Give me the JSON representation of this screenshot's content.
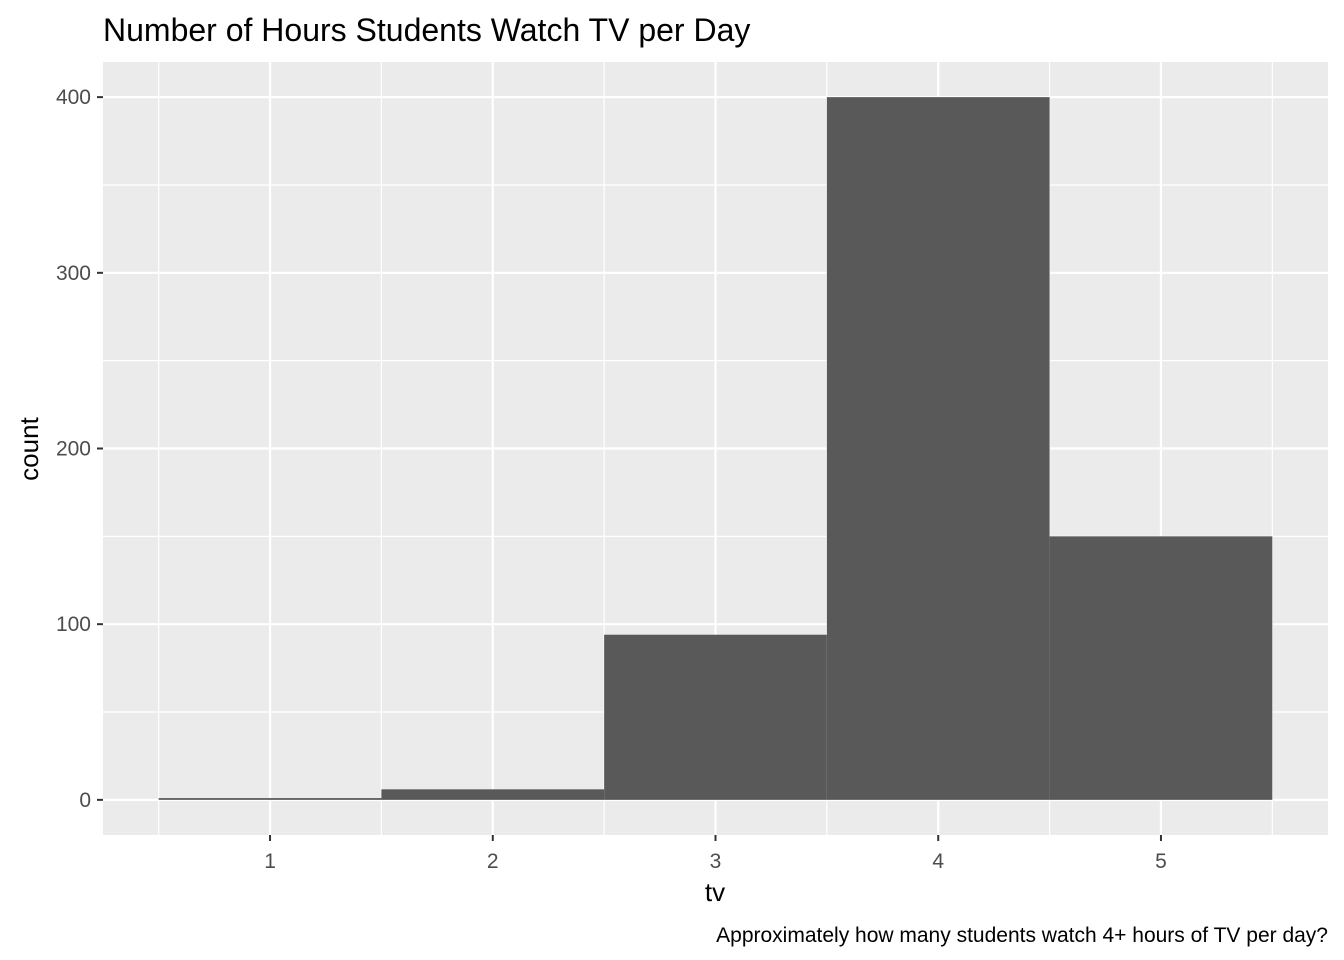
{
  "chart_data": {
    "type": "bar",
    "title": "Number of Hours Students Watch TV per Day",
    "xlabel": "tv",
    "ylabel": "count",
    "caption": "Approximately how many students watch 4+ hours of TV per day?",
    "categories": [
      "1",
      "2",
      "3",
      "4",
      "5"
    ],
    "x": [
      1,
      2,
      3,
      4,
      5
    ],
    "values": [
      1,
      6,
      94,
      400,
      150
    ],
    "xlim": [
      0.5,
      5.5
    ],
    "ylim": [
      0,
      400
    ],
    "xticks": [
      1,
      2,
      3,
      4,
      5
    ],
    "yticks": [
      0,
      100,
      200,
      300,
      400
    ],
    "grid": true,
    "legend": "none",
    "colors": {
      "panel": "#ebebeb",
      "grid": "#ffffff",
      "bar": "#595959",
      "tick_text": "#4d4d4d",
      "text": "#000000"
    }
  }
}
